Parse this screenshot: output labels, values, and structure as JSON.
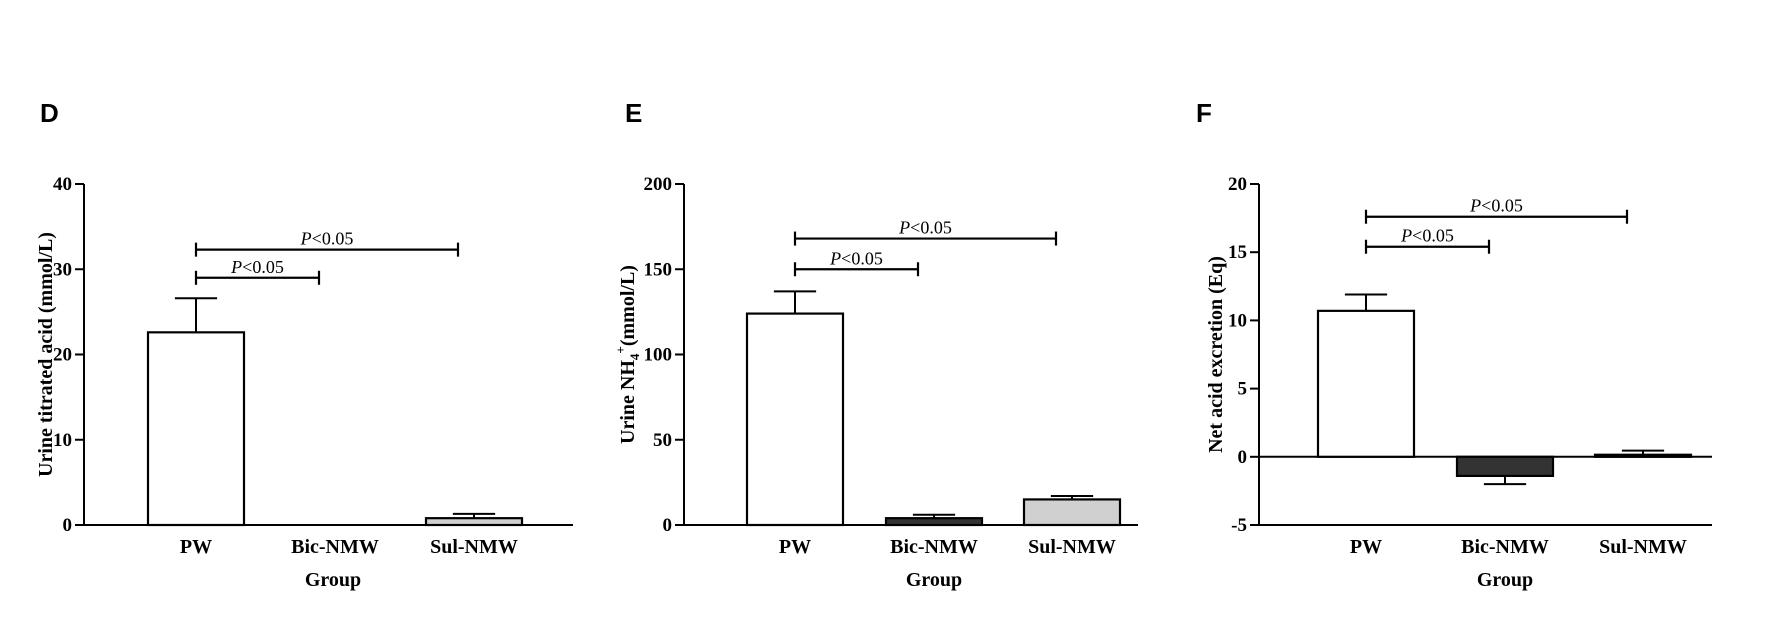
{
  "chart_data": [
    {
      "type": "bar",
      "panel": "D",
      "categories": [
        "PW",
        "Bic-NMW",
        "Sul-NMW"
      ],
      "values": [
        22.6,
        0,
        0.8
      ],
      "errors": [
        4.0,
        0,
        0.5
      ],
      "bar_colors": [
        "#ffffff",
        "#333333",
        "#d0d0d0"
      ],
      "xlabel": "Group",
      "ylabel": "Urine titrated acid (mmol/L)",
      "ylim": [
        0,
        40
      ],
      "yticks": [
        0,
        10,
        20,
        30,
        40
      ],
      "significance": [
        {
          "from": 0,
          "to": 1,
          "y": 29.0,
          "label": "P<0.05"
        },
        {
          "from": 0,
          "to": 2,
          "y": 32.3,
          "label": "P<0.05"
        }
      ]
    },
    {
      "type": "bar",
      "panel": "E",
      "categories": [
        "PW",
        "Bic-NMW",
        "Sul-NMW"
      ],
      "values": [
        124,
        4,
        15
      ],
      "errors": [
        13,
        2,
        2
      ],
      "bar_colors": [
        "#ffffff",
        "#333333",
        "#d0d0d0"
      ],
      "xlabel": "Group",
      "ylabel_parts": [
        "Urine NH",
        "4",
        "+",
        "(mmol/L)"
      ],
      "ylim": [
        0,
        200
      ],
      "yticks": [
        0,
        50,
        100,
        150,
        200
      ],
      "significance": [
        {
          "from": 0,
          "to": 1,
          "y": 150,
          "label": "P<0.05"
        },
        {
          "from": 0,
          "to": 2,
          "y": 168,
          "label": "P<0.05"
        }
      ]
    },
    {
      "type": "bar",
      "panel": "F",
      "categories": [
        "PW",
        "Bic-NMW",
        "Sul-NMW"
      ],
      "values": [
        10.7,
        -1.4,
        0.15
      ],
      "errors": [
        1.2,
        0.6,
        0.3
      ],
      "bar_colors": [
        "#ffffff",
        "#333333",
        "#d0d0d0"
      ],
      "xlabel": "Group",
      "ylabel": "Net acid excretion (Eq)",
      "ylim": [
        -5,
        20
      ],
      "yticks": [
        -5,
        0,
        5,
        10,
        15,
        20
      ],
      "significance": [
        {
          "from": 0,
          "to": 1,
          "y": 15.4,
          "label": "P<0.05"
        },
        {
          "from": 0,
          "to": 2,
          "y": 17.6,
          "label": "P<0.05"
        }
      ]
    }
  ]
}
